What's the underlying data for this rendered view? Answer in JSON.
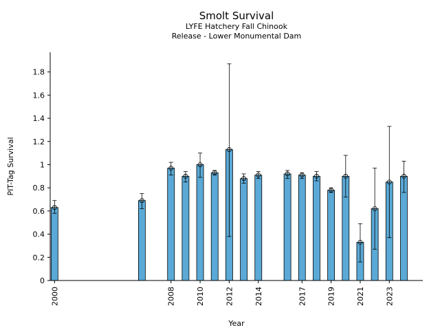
{
  "chart_data": {
    "type": "bar",
    "title": "Smolt Survival",
    "subtitle_lines": [
      "LYFE Hatchery Fall Chinook",
      "Release - Lower Monumental Dam"
    ],
    "xlabel": "Year",
    "ylabel": "PIT-Tag Survival",
    "xlim": [
      1999.7,
      2025.3
    ],
    "ylim": [
      0,
      1.97
    ],
    "bar_color": "#5aa9d6",
    "x_ticks": [
      2000,
      2008,
      2010,
      2012,
      2014,
      2017,
      2019,
      2021,
      2023
    ],
    "y_ticks": [
      0,
      0.2,
      0.4,
      0.6,
      0.8,
      1,
      1.2,
      1.4,
      1.6,
      1.8
    ],
    "y_tick_labels": [
      "0",
      "0.2",
      "0.4",
      "0.6",
      "0.8",
      "1",
      "1.2",
      "1.4",
      "1.6",
      "1.8"
    ],
    "points": [
      {
        "year": 2000,
        "value": 0.63,
        "lower": 0.58,
        "upper": 0.69
      },
      {
        "year": 2006,
        "value": 0.69,
        "lower": 0.62,
        "upper": 0.75
      },
      {
        "year": 2008,
        "value": 0.97,
        "lower": 0.91,
        "upper": 1.02
      },
      {
        "year": 2009,
        "value": 0.9,
        "lower": 0.85,
        "upper": 0.94
      },
      {
        "year": 2010,
        "value": 1.0,
        "lower": 0.89,
        "upper": 1.1
      },
      {
        "year": 2011,
        "value": 0.93,
        "lower": 0.91,
        "upper": 0.95
      },
      {
        "year": 2012,
        "value": 1.13,
        "lower": 0.38,
        "upper": 1.87
      },
      {
        "year": 2013,
        "value": 0.88,
        "lower": 0.84,
        "upper": 0.92
      },
      {
        "year": 2014,
        "value": 0.91,
        "lower": 0.88,
        "upper": 0.94
      },
      {
        "year": 2016,
        "value": 0.92,
        "lower": 0.88,
        "upper": 0.95
      },
      {
        "year": 2017,
        "value": 0.91,
        "lower": 0.88,
        "upper": 0.93
      },
      {
        "year": 2018,
        "value": 0.9,
        "lower": 0.86,
        "upper": 0.94
      },
      {
        "year": 2019,
        "value": 0.78,
        "lower": 0.76,
        "upper": 0.8
      },
      {
        "year": 2020,
        "value": 0.9,
        "lower": 0.72,
        "upper": 1.08
      },
      {
        "year": 2021,
        "value": 0.33,
        "lower": 0.16,
        "upper": 0.49
      },
      {
        "year": 2022,
        "value": 0.62,
        "lower": 0.27,
        "upper": 0.97
      },
      {
        "year": 2023,
        "value": 0.85,
        "lower": 0.37,
        "upper": 1.33
      },
      {
        "year": 2024,
        "value": 0.9,
        "lower": 0.76,
        "upper": 1.03
      }
    ]
  }
}
